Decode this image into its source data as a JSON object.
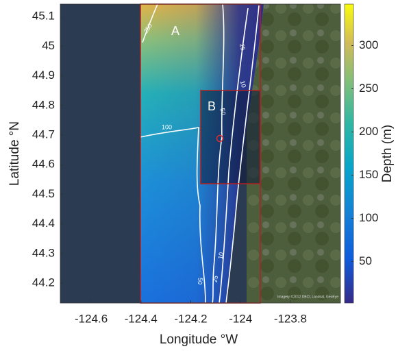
{
  "axes": {
    "xlim": [
      -124.724,
      -123.599
    ],
    "ylim": [
      44.133,
      45.142
    ],
    "xticks": [
      -124.6,
      -124.4,
      -124.2,
      -124,
      -123.8
    ],
    "yticks": [
      44.2,
      44.3,
      44.4,
      44.5,
      44.6,
      44.7,
      44.8,
      44.9,
      45,
      45.1
    ],
    "xlabel": "Longitude °W",
    "ylabel": "Latitude °N"
  },
  "colorbar": {
    "label": "Depth (m)",
    "clim": [
      2,
      348
    ],
    "ticks": [
      50,
      100,
      150,
      200,
      250,
      300
    ]
  },
  "regions": [
    {
      "label": "A"
    },
    {
      "label": "B"
    }
  ],
  "contour_labels": [
    "250",
    "100",
    "50",
    "25",
    "10",
    "10",
    "25",
    "50"
  ],
  "attribution": "Imagery ©2012 DBCI, Landsat, GeoEye"
}
